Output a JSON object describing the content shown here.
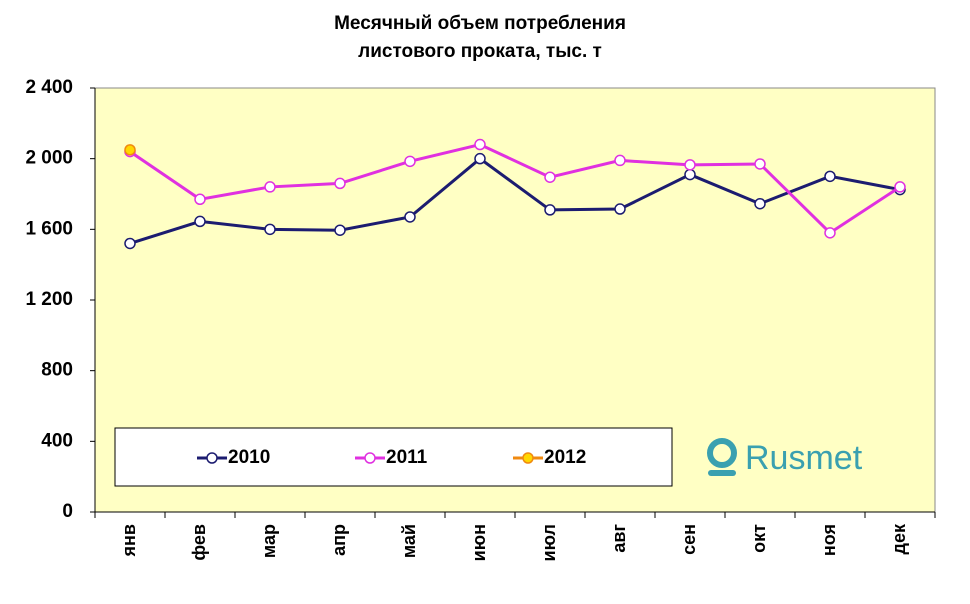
{
  "chart_data": {
    "type": "line",
    "title": [
      "Месячный объем потребления",
      "листового проката, тыс. т"
    ],
    "categories": [
      "янв",
      "фев",
      "мар",
      "апр",
      "май",
      "июн",
      "июл",
      "авг",
      "сен",
      "окт",
      "ноя",
      "дек"
    ],
    "series": [
      {
        "name": "2010",
        "color": "#1c1c70",
        "marker_fill": "#ffffff",
        "values": [
          1520,
          1645,
          1600,
          1595,
          1670,
          2000,
          1710,
          1715,
          1910,
          1745,
          1900,
          1825
        ]
      },
      {
        "name": "2011",
        "color": "#e030e0",
        "marker_fill": "#ffffff",
        "values": [
          2040,
          1770,
          1840,
          1860,
          1985,
          2080,
          1895,
          1990,
          1965,
          1970,
          1580,
          1840
        ]
      },
      {
        "name": "2012",
        "color": "#f08a10",
        "marker_fill": "#ffd700",
        "values": [
          2050,
          null,
          null,
          null,
          null,
          null,
          null,
          null,
          null,
          null,
          null,
          null
        ]
      }
    ],
    "ylim": [
      0,
      2400
    ],
    "yticks": [
      0,
      400,
      800,
      {
        "value": 1200,
        "label": "1 200"
      },
      {
        "value": 1600,
        "label": "1 600"
      },
      {
        "value": 2000,
        "label": "2 000"
      },
      {
        "value": 2400,
        "label": "2 400"
      }
    ],
    "grid": false,
    "plot_background": "#ffffc4",
    "logo": "Rusmet"
  }
}
